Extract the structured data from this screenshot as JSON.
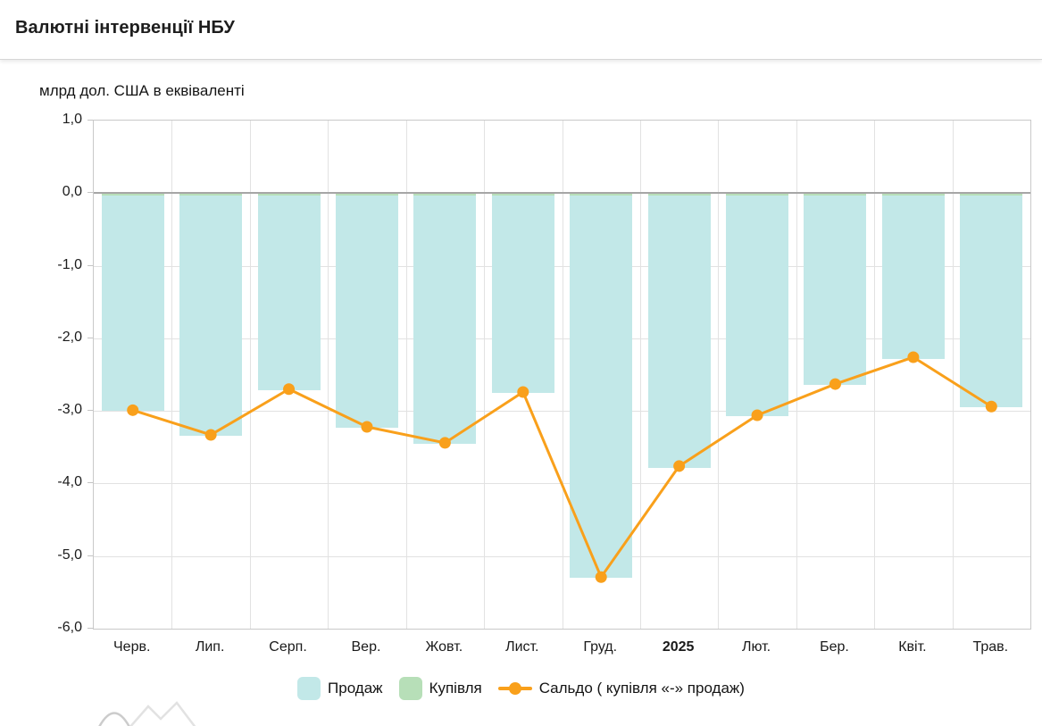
{
  "header": {
    "title": "Валютні інтервенції НБУ"
  },
  "chart": {
    "unit_label": "млрд дол. США в еквіваленті",
    "emphasized_category": "2025"
  },
  "colors": {
    "sale_bar": "#c2e8e8",
    "buy_bar": "#b7dfb8",
    "balance_line": "#f9a01b",
    "grid": "#e2e2e2",
    "zero_line": "#a6a6a6",
    "plot_border": "#c9c9c9",
    "watermark": "#cfcfcf"
  },
  "chart_data": {
    "type": "bar",
    "title": "Валютні інтервенції НБУ",
    "ylabel": "млрд дол. США в еквіваленті",
    "categories": [
      "Черв.",
      "Лип.",
      "Серп.",
      "Вер.",
      "Жовт.",
      "Лист.",
      "Груд.",
      "2025",
      "Лют.",
      "Бер.",
      "Квіт.",
      "Трав."
    ],
    "series": [
      {
        "name": "Продаж",
        "type": "bar",
        "color": "#c2e8e8",
        "values": [
          -3.0,
          -3.34,
          -2.71,
          -3.23,
          -3.45,
          -2.75,
          -5.3,
          -3.78,
          -3.07,
          -2.64,
          -2.28,
          -2.95
        ]
      },
      {
        "name": "Купівля",
        "type": "bar",
        "color": "#b7dfb8",
        "values": [
          0.02,
          0.02,
          0.02,
          0.02,
          0.02,
          0.02,
          0.02,
          0.02,
          0.02,
          0.02,
          0.02,
          0.02
        ]
      },
      {
        "name": "Сальдо ( купівля «-» продаж)",
        "type": "line",
        "color": "#f9a01b",
        "values": [
          -2.99,
          -3.33,
          -2.7,
          -3.22,
          -3.44,
          -2.74,
          -5.29,
          -3.76,
          -3.06,
          -2.63,
          -2.26,
          -2.94
        ]
      }
    ],
    "ylim": [
      -6,
      1
    ],
    "yticks": [
      "1,0",
      "0,0",
      "-1,0",
      "-2,0",
      "-3,0",
      "-4,0",
      "-5,0",
      "-6,0"
    ],
    "grid": true,
    "legend_position": "bottom"
  }
}
